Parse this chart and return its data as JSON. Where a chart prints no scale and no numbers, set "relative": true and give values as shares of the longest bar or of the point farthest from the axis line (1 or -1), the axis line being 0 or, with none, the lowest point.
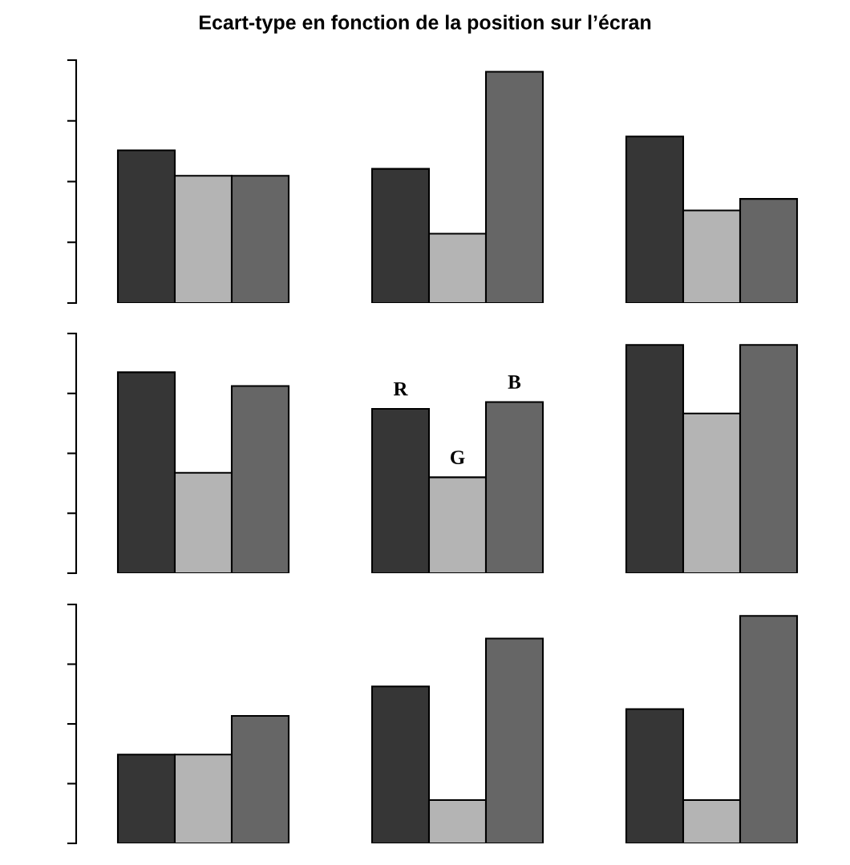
{
  "chart_data": [
    {
      "type": "bar",
      "title": "Ecart-type en fonction de la position sur l’écran",
      "relative": true,
      "categories": [
        null,
        null,
        null
      ],
      "series": [
        {
          "color": "#363636",
          "values": [
            0.66,
            0.58,
            0.72
          ]
        },
        {
          "color": "#b4b4b4",
          "values": [
            0.55,
            0.3,
            0.4
          ]
        },
        {
          "color": "#666666",
          "values": [
            0.55,
            1,
            0.45
          ]
        }
      ]
    },
    {
      "type": "bar",
      "relative": true,
      "categories": [
        null,
        null,
        null
      ],
      "series": [
        {
          "name": "R",
          "color": "#363636",
          "values": [
            0.88,
            0.72,
            1
          ]
        },
        {
          "name": "G",
          "color": "#b4b4b4",
          "values": [
            0.44,
            0.42,
            0.7
          ]
        },
        {
          "name": "B",
          "color": "#666666",
          "values": [
            0.82,
            0.75,
            1
          ]
        }
      ]
    },
    {
      "type": "bar",
      "relative": true,
      "categories": [
        null,
        null,
        null
      ],
      "series": [
        {
          "color": "#363636",
          "values": [
            0.39,
            0.69,
            0.59
          ]
        },
        {
          "color": "#b4b4b4",
          "values": [
            0.39,
            0.19,
            0.19
          ]
        },
        {
          "color": "#666666",
          "values": [
            0.56,
            0.9,
            1
          ]
        }
      ]
    }
  ]
}
